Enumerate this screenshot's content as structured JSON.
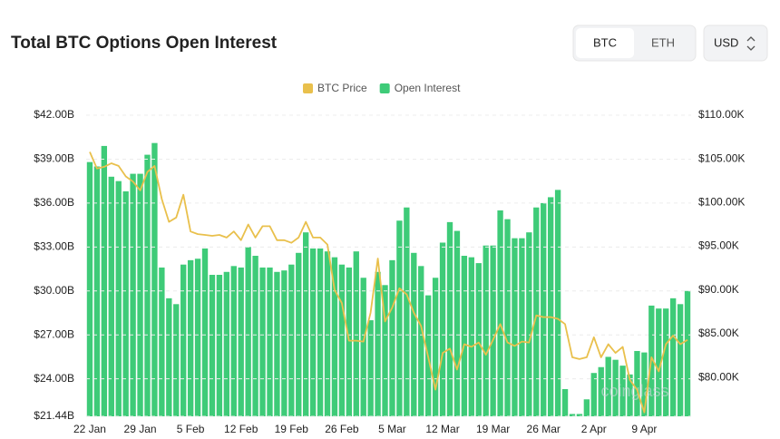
{
  "chart_data": {
    "type": "bar",
    "title": "Total BTC Options Open Interest",
    "controls": {
      "assets": [
        "BTC",
        "ETH"
      ],
      "currency": "USD"
    },
    "watermark": "coinglass",
    "categories": [
      "22 Jan",
      null,
      null,
      null,
      null,
      null,
      null,
      "29 Jan",
      null,
      null,
      null,
      null,
      null,
      null,
      "5 Feb",
      null,
      null,
      null,
      null,
      null,
      null,
      "12 Feb",
      null,
      null,
      null,
      null,
      null,
      null,
      "19 Feb",
      null,
      null,
      null,
      null,
      null,
      null,
      "26 Feb",
      null,
      null,
      null,
      null,
      null,
      null,
      "5 Mar",
      null,
      null,
      null,
      null,
      null,
      null,
      "12 Mar",
      null,
      null,
      null,
      null,
      null,
      null,
      "19 Mar",
      null,
      null,
      null,
      null,
      null,
      null,
      "26 Mar",
      null,
      null,
      null,
      null,
      null,
      null,
      "2 Apr",
      null,
      null,
      null,
      null,
      null,
      null,
      "9 Apr",
      null,
      null,
      null,
      null,
      null,
      null
    ],
    "series": [
      {
        "name": "BTC Price",
        "type": "line",
        "axis": "y2",
        "color": "#e9c04c",
        "values": [
          105.8,
          103.9,
          104.1,
          104.5,
          104.2,
          103.0,
          102.4,
          101.4,
          103.5,
          104.2,
          100.4,
          97.8,
          98.3,
          100.9,
          96.7,
          96.4,
          96.3,
          96.2,
          96.3,
          96.0,
          96.7,
          95.7,
          97.5,
          96.0,
          97.3,
          97.3,
          95.7,
          95.7,
          95.4,
          96.0,
          97.8,
          96.0,
          96.0,
          95.2,
          90.0,
          88.5,
          84.2,
          84.2,
          84.1,
          87.4,
          93.6,
          86.4,
          88.0,
          90.2,
          89.5,
          87.4,
          85.9,
          82.3,
          78.6,
          82.8,
          83.3,
          80.9,
          83.8,
          83.5,
          84.0,
          82.6,
          84.3,
          86.1,
          84.0,
          83.6,
          84.1,
          84.0,
          87.1,
          86.9,
          86.9,
          86.7,
          86.1,
          82.3,
          82.1,
          82.3,
          84.6,
          82.3,
          83.8,
          82.8,
          83.5,
          79.7,
          78.6,
          76.0,
          82.3,
          80.7,
          83.8,
          84.8,
          83.8,
          84.3
        ]
      },
      {
        "name": "Open Interest",
        "type": "bar",
        "color": "#3ecb78",
        "values": [
          38.8,
          38.5,
          39.9,
          37.8,
          37.5,
          36.8,
          38.0,
          38.0,
          39.3,
          40.1,
          31.6,
          29.5,
          29.1,
          31.8,
          32.1,
          32.2,
          32.9,
          31.1,
          31.1,
          31.3,
          31.7,
          31.6,
          33.0,
          32.4,
          31.6,
          31.6,
          31.3,
          31.4,
          31.8,
          32.6,
          34.0,
          32.9,
          32.9,
          32.7,
          32.3,
          31.8,
          31.6,
          32.7,
          30.9,
          28.0,
          31.3,
          30.4,
          32.1,
          34.8,
          35.7,
          32.6,
          31.7,
          29.7,
          30.9,
          33.3,
          34.7,
          34.1,
          32.4,
          32.3,
          31.9,
          33.1,
          33.1,
          35.5,
          34.9,
          33.6,
          33.6,
          34.0,
          35.7,
          36.0,
          36.4,
          36.9,
          23.3,
          21.6,
          21.6,
          22.6,
          24.4,
          24.8,
          25.5,
          25.3,
          24.9,
          24.3,
          25.9,
          25.8,
          29.0,
          28.8,
          28.8,
          29.5,
          29.1,
          30.0
        ]
      }
    ],
    "ylim": [
      21.44,
      42
    ],
    "yticks": [
      {
        "value": 21.44,
        "label": "$21.44B"
      },
      {
        "value": 24,
        "label": "$24.00B"
      },
      {
        "value": 27,
        "label": "$27.00B"
      },
      {
        "value": 30,
        "label": "$30.00B"
      },
      {
        "value": 33,
        "label": "$33.00B"
      },
      {
        "value": 36,
        "label": "$36.00B"
      },
      {
        "value": 39,
        "label": "$39.00B"
      },
      {
        "value": 42,
        "label": "$42.00B"
      }
    ],
    "y2lim": [
      75.55,
      110
    ],
    "y2ticks": [
      {
        "value": 80,
        "label": "$80.00K"
      },
      {
        "value": 85,
        "label": "$85.00K"
      },
      {
        "value": 90,
        "label": "$90.00K"
      },
      {
        "value": 95,
        "label": "$95.00K"
      },
      {
        "value": 100,
        "label": "$100.00K"
      },
      {
        "value": 105,
        "label": "$105.00K"
      },
      {
        "value": 110,
        "label": "$110.00K"
      }
    ],
    "grid": true,
    "legend": "top"
  }
}
